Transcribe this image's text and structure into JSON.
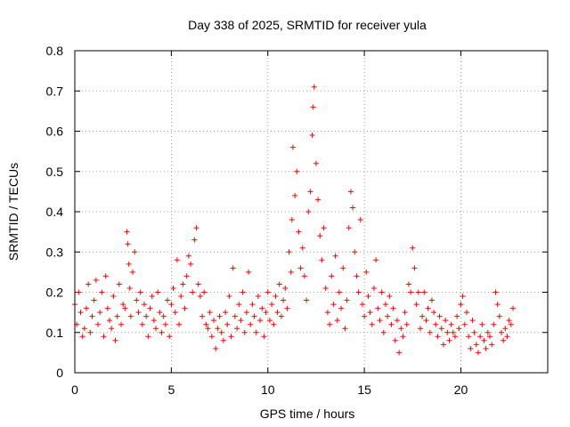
{
  "chart_data": {
    "type": "scatter",
    "title": "Day 338 of 2025, SRMTID for receiver yula",
    "xlabel": "GPS time / hours",
    "ylabel": "SRMTID / TECUs",
    "xlim": [
      0,
      24.5
    ],
    "ylim": [
      0,
      0.8
    ],
    "xticks": [
      0,
      5,
      10,
      15,
      20
    ],
    "xtick_labels": [
      "0",
      "5",
      "10",
      "15",
      "20"
    ],
    "yticks": [
      0,
      0.1,
      0.2,
      0.3,
      0.4,
      0.5,
      0.6,
      0.7,
      0.8
    ],
    "ytick_labels": [
      "0",
      "0.1",
      "0.2",
      "0.3",
      "0.4",
      "0.5",
      "0.6",
      "0.7",
      "0.8"
    ],
    "grid": true,
    "marker": "+",
    "marker_color": "#ff0000",
    "series": [
      {
        "name": "SRMTID",
        "x": [
          0.0,
          0.1,
          0.2,
          0.3,
          0.4,
          0.5,
          0.6,
          0.7,
          0.8,
          0.9,
          1.0,
          1.1,
          1.2,
          1.3,
          1.4,
          1.5,
          1.6,
          1.7,
          1.8,
          1.9,
          2.0,
          2.1,
          2.2,
          2.3,
          2.4,
          2.5,
          2.6,
          2.7,
          2.75,
          2.8,
          2.85,
          2.9,
          3.0,
          3.1,
          3.2,
          3.3,
          3.4,
          3.5,
          3.6,
          3.7,
          3.8,
          3.9,
          4.0,
          4.1,
          4.2,
          4.3,
          4.4,
          4.5,
          4.6,
          4.7,
          4.8,
          4.9,
          5.0,
          5.1,
          5.2,
          5.3,
          5.4,
          5.5,
          5.6,
          5.7,
          5.8,
          5.9,
          6.0,
          6.1,
          6.2,
          6.3,
          6.4,
          6.5,
          6.6,
          6.7,
          6.8,
          6.9,
          7.0,
          7.1,
          7.2,
          7.3,
          7.4,
          7.5,
          7.6,
          7.7,
          7.8,
          7.9,
          8.0,
          8.1,
          8.2,
          8.3,
          8.4,
          8.5,
          8.6,
          8.7,
          8.8,
          8.9,
          9.0,
          9.1,
          9.2,
          9.3,
          9.4,
          9.5,
          9.6,
          9.7,
          9.8,
          9.9,
          10.0,
          10.1,
          10.2,
          10.3,
          10.4,
          10.5,
          10.6,
          10.7,
          10.8,
          10.9,
          11.0,
          11.1,
          11.2,
          11.25,
          11.3,
          11.4,
          11.5,
          11.6,
          11.7,
          11.8,
          11.9,
          12.0,
          12.1,
          12.2,
          12.3,
          12.35,
          12.4,
          12.5,
          12.6,
          12.7,
          12.8,
          12.9,
          13.0,
          13.1,
          13.2,
          13.3,
          13.4,
          13.5,
          13.6,
          13.7,
          13.8,
          13.9,
          14.0,
          14.1,
          14.2,
          14.3,
          14.4,
          14.5,
          14.6,
          14.7,
          14.8,
          14.9,
          15.0,
          15.1,
          15.2,
          15.3,
          15.4,
          15.5,
          15.6,
          15.7,
          15.8,
          15.9,
          16.0,
          16.1,
          16.2,
          16.3,
          16.4,
          16.5,
          16.6,
          16.7,
          16.8,
          16.9,
          17.0,
          17.1,
          17.2,
          17.3,
          17.4,
          17.5,
          17.6,
          17.7,
          17.8,
          17.9,
          18.0,
          18.1,
          18.2,
          18.3,
          18.4,
          18.5,
          18.6,
          18.7,
          18.8,
          18.9,
          19.0,
          19.1,
          19.2,
          19.3,
          19.4,
          19.5,
          19.6,
          19.7,
          19.8,
          19.9,
          20.0,
          20.1,
          20.2,
          20.3,
          20.4,
          20.5,
          20.6,
          20.7,
          20.8,
          20.9,
          21.0,
          21.1,
          21.2,
          21.3,
          21.4,
          21.5,
          21.6,
          21.7,
          21.8,
          21.9,
          22.0,
          22.1,
          22.2,
          22.3,
          22.4,
          22.5,
          22.6,
          22.7
        ],
        "y": [
          0.17,
          0.12,
          0.2,
          0.15,
          0.09,
          0.11,
          0.16,
          0.22,
          0.1,
          0.14,
          0.18,
          0.23,
          0.12,
          0.15,
          0.2,
          0.09,
          0.24,
          0.16,
          0.13,
          0.11,
          0.19,
          0.08,
          0.14,
          0.22,
          0.12,
          0.17,
          0.16,
          0.35,
          0.32,
          0.27,
          0.21,
          0.14,
          0.25,
          0.3,
          0.18,
          0.15,
          0.2,
          0.12,
          0.17,
          0.14,
          0.09,
          0.16,
          0.19,
          0.13,
          0.11,
          0.2,
          0.15,
          0.1,
          0.14,
          0.12,
          0.18,
          0.09,
          0.17,
          0.21,
          0.15,
          0.28,
          0.12,
          0.19,
          0.22,
          0.16,
          0.24,
          0.29,
          0.27,
          0.2,
          0.33,
          0.36,
          0.22,
          0.19,
          0.14,
          0.2,
          0.12,
          0.11,
          0.15,
          0.09,
          0.13,
          0.06,
          0.11,
          0.14,
          0.1,
          0.08,
          0.15,
          0.12,
          0.19,
          0.09,
          0.26,
          0.14,
          0.11,
          0.17,
          0.13,
          0.2,
          0.1,
          0.15,
          0.25,
          0.12,
          0.17,
          0.14,
          0.1,
          0.19,
          0.13,
          0.16,
          0.09,
          0.15,
          0.2,
          0.13,
          0.17,
          0.12,
          0.19,
          0.15,
          0.22,
          0.14,
          0.18,
          0.21,
          0.16,
          0.3,
          0.25,
          0.38,
          0.56,
          0.44,
          0.5,
          0.35,
          0.26,
          0.31,
          0.24,
          0.18,
          0.4,
          0.45,
          0.59,
          0.66,
          0.71,
          0.52,
          0.43,
          0.34,
          0.28,
          0.36,
          0.21,
          0.15,
          0.12,
          0.24,
          0.17,
          0.29,
          0.13,
          0.2,
          0.16,
          0.26,
          0.11,
          0.18,
          0.36,
          0.45,
          0.41,
          0.3,
          0.24,
          0.2,
          0.38,
          0.17,
          0.14,
          0.25,
          0.19,
          0.15,
          0.12,
          0.21,
          0.28,
          0.16,
          0.13,
          0.2,
          0.1,
          0.17,
          0.14,
          0.19,
          0.12,
          0.16,
          0.08,
          0.13,
          0.05,
          0.11,
          0.09,
          0.15,
          0.12,
          0.22,
          0.2,
          0.31,
          0.26,
          0.17,
          0.2,
          0.11,
          0.14,
          0.2,
          0.13,
          0.16,
          0.1,
          0.18,
          0.15,
          0.12,
          0.09,
          0.14,
          0.11,
          0.07,
          0.13,
          0.1,
          0.08,
          0.12,
          0.1,
          0.09,
          0.14,
          0.11,
          0.17,
          0.19,
          0.12,
          0.15,
          0.09,
          0.06,
          0.13,
          0.1,
          0.07,
          0.05,
          0.09,
          0.12,
          0.08,
          0.06,
          0.1,
          0.09,
          0.07,
          0.12,
          0.2,
          0.17,
          0.14,
          0.1,
          0.08,
          0.11,
          0.09,
          0.13,
          0.12,
          0.16
        ]
      }
    ]
  }
}
